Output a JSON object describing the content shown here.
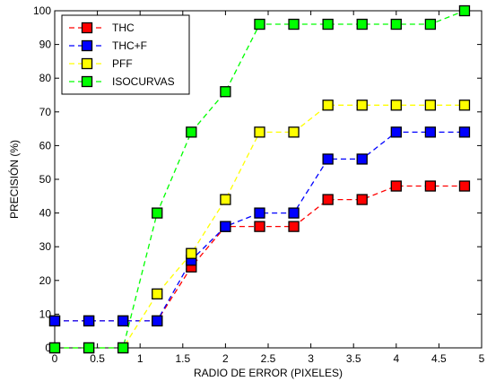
{
  "chart_data": {
    "type": "line",
    "xlabel": "RADIO DE ERROR (PIXELES)",
    "ylabel": "PRECISIÓN (%)",
    "xlim": [
      0,
      5
    ],
    "ylim": [
      0,
      100
    ],
    "x_ticks": [
      0,
      0.5,
      1,
      1.5,
      2,
      2.5,
      3,
      3.5,
      4,
      4.5,
      5
    ],
    "y_ticks": [
      0,
      10,
      20,
      30,
      40,
      50,
      60,
      70,
      80,
      90,
      100
    ],
    "grid": false,
    "legend_position": "top-left",
    "x": [
      0,
      0.4,
      0.8,
      1.2,
      1.6,
      2.0,
      2.4,
      2.8,
      3.2,
      3.6,
      4.0,
      4.4,
      4.8
    ],
    "series": [
      {
        "name": "THC",
        "color": "#ff0000",
        "marker_color": "#ff0000",
        "values": [
          8,
          8,
          8,
          8,
          24,
          36,
          36,
          36,
          44,
          44,
          48,
          48,
          48
        ]
      },
      {
        "name": "THC+F",
        "color": "#0000ff",
        "marker_color": "#0000ff",
        "values": [
          8,
          8,
          8,
          8,
          26,
          36,
          40,
          40,
          56,
          56,
          64,
          64,
          64
        ]
      },
      {
        "name": "PFF",
        "color": "#ffff00",
        "marker_color": "#ffff00",
        "values": [
          0,
          0,
          0,
          16,
          28,
          44,
          64,
          64,
          72,
          72,
          72,
          72,
          72
        ]
      },
      {
        "name": "ISOCURVAS",
        "color": "#00ff00",
        "marker_color": "#00ff00",
        "values": [
          0,
          0,
          0,
          40,
          64,
          76,
          96,
          96,
          96,
          96,
          96,
          96,
          100
        ]
      }
    ]
  }
}
